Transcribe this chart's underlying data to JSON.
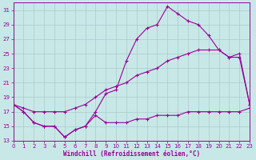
{
  "bg_color": "#c8e8e8",
  "grid_color": "#aacccc",
  "line_color": "#990099",
  "xlabel": "Windchill (Refroidissement éolien,°C)",
  "ylabel_ticks": [
    13,
    15,
    17,
    19,
    21,
    23,
    25,
    27,
    29,
    31
  ],
  "xlim": [
    0,
    23
  ],
  "ylim": [
    13,
    32
  ],
  "xticks": [
    0,
    1,
    2,
    3,
    4,
    5,
    6,
    7,
    8,
    9,
    10,
    11,
    12,
    13,
    14,
    15,
    16,
    17,
    18,
    19,
    20,
    21,
    22,
    23
  ],
  "line1_x": [
    0,
    1,
    2,
    3,
    4,
    5,
    6,
    7,
    8,
    9,
    10,
    11,
    12,
    13,
    14,
    15,
    16,
    17,
    18,
    19,
    20,
    21,
    22,
    23
  ],
  "line1_y": [
    18.0,
    17.0,
    15.5,
    15.0,
    15.0,
    13.5,
    14.5,
    15.0,
    17.0,
    19.5,
    20.0,
    24.0,
    27.0,
    28.5,
    29.0,
    31.5,
    30.5,
    29.5,
    29.0,
    27.5,
    25.5,
    24.5,
    25.0,
    18.0
  ],
  "line2_x": [
    0,
    1,
    2,
    3,
    4,
    5,
    6,
    7,
    8,
    9,
    10,
    11,
    12,
    13,
    14,
    15,
    16,
    17,
    18,
    19,
    20,
    21,
    22,
    23
  ],
  "line2_y": [
    18.0,
    17.5,
    17.0,
    17.0,
    17.0,
    17.0,
    17.5,
    18.0,
    19.0,
    20.0,
    20.5,
    21.0,
    22.0,
    22.5,
    23.0,
    24.0,
    24.5,
    25.0,
    25.5,
    25.5,
    25.5,
    24.5,
    24.5,
    18.0
  ],
  "line3_x": [
    0,
    1,
    2,
    3,
    4,
    5,
    6,
    7,
    8,
    9,
    10,
    11,
    12,
    13,
    14,
    15,
    16,
    17,
    18,
    19,
    20,
    21,
    22,
    23
  ],
  "line3_y": [
    18.0,
    17.0,
    15.5,
    15.0,
    15.0,
    13.5,
    14.5,
    15.0,
    16.5,
    15.5,
    15.5,
    15.5,
    16.0,
    16.0,
    16.5,
    16.5,
    16.5,
    17.0,
    17.0,
    17.0,
    17.0,
    17.0,
    17.0,
    17.5
  ]
}
